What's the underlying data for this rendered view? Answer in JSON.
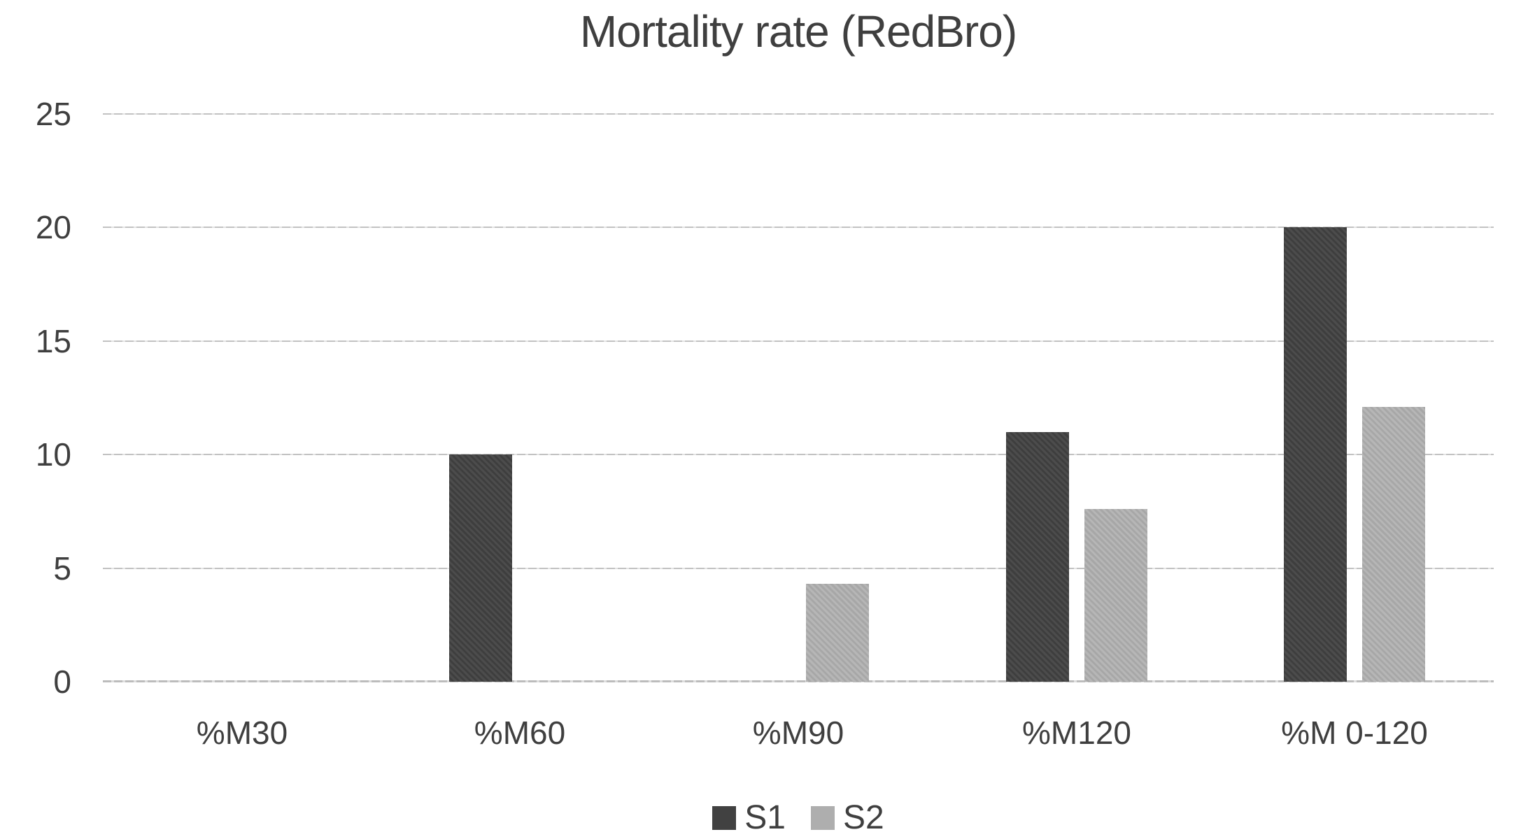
{
  "chart_data": {
    "type": "bar",
    "title": "Mortality rate (RedBro)",
    "categories": [
      "%M30",
      "%M60",
      "%M90",
      "%M120",
      "%M 0-120"
    ],
    "series": [
      {
        "name": "S1",
        "color": "#414141",
        "values": [
          0,
          10,
          0,
          11,
          20
        ]
      },
      {
        "name": "S2",
        "color": "#aeaeae",
        "values": [
          0,
          0,
          4.3,
          7.6,
          12.1
        ]
      }
    ],
    "xlabel": "",
    "ylabel": "",
    "ylim": [
      0,
      25
    ],
    "yticks": [
      0,
      5,
      10,
      15,
      20,
      25
    ],
    "grid": true,
    "gridline_color": "#c2c2c2",
    "background_color": "#ffffff",
    "text_color": "#3f3f3f",
    "legend_position": "bottom"
  }
}
